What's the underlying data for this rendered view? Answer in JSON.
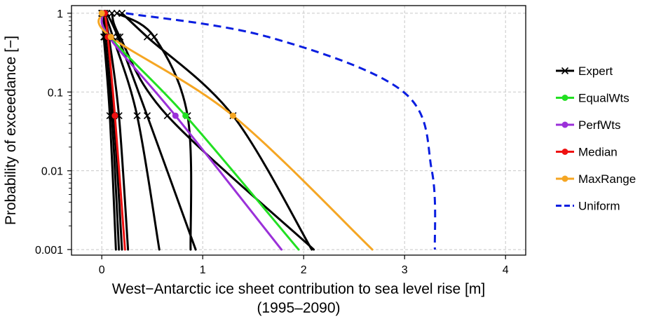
{
  "chart_data": {
    "type": "line",
    "xlabel": "West−Antarctic ice sheet contribution to sea level rise [m]",
    "xlabel_sub": "(1995–2090)",
    "ylabel": "Probability of exceedance [−]",
    "xlim": [
      -0.3,
      4.2
    ],
    "ylim": [
      0.00085,
      1.25
    ],
    "y_scale": "log",
    "grid": true,
    "x_ticks": [
      0,
      1,
      2,
      3,
      4
    ],
    "x_tick_labels": [
      "0",
      "1",
      "2",
      "3",
      "4"
    ],
    "y_ticks": [
      1,
      0.1,
      0.01,
      0.001
    ],
    "y_tick_labels": [
      "1",
      "0.1",
      "0.01",
      "0.001"
    ],
    "legend_position": "right",
    "legend": [
      {
        "label": "Expert",
        "color": "#000000",
        "marker": "x",
        "dashed": false
      },
      {
        "label": "EqualWts",
        "color": "#22e022",
        "marker": "dot",
        "dashed": false
      },
      {
        "label": "PerfWts",
        "color": "#9b30d9",
        "marker": "dot",
        "dashed": false
      },
      {
        "label": "Median",
        "color": "#ee1111",
        "marker": "dot",
        "dashed": false
      },
      {
        "label": "MaxRange",
        "color": "#f5a623",
        "marker": "dot",
        "dashed": false
      },
      {
        "label": "Uniform",
        "color": "#0a1ee0",
        "marker": "none",
        "dashed": true
      }
    ],
    "series": [
      {
        "legend": "Expert",
        "color": "#000000",
        "dashed": false,
        "markers": "x",
        "points": [
          [
            0.0,
            1
          ],
          [
            0.02,
            0.5
          ],
          [
            0.08,
            0.05
          ],
          [
            0.14,
            0.001
          ]
        ]
      },
      {
        "legend": "Expert",
        "color": "#000000",
        "dashed": false,
        "markers": "x",
        "points": [
          [
            0.0,
            1
          ],
          [
            0.03,
            0.5
          ],
          [
            0.1,
            0.05
          ],
          [
            0.17,
            0.001
          ]
        ]
      },
      {
        "legend": "Expert",
        "color": "#000000",
        "dashed": false,
        "markers": "x",
        "points": [
          [
            0.01,
            1
          ],
          [
            0.05,
            0.5
          ],
          [
            0.12,
            0.05
          ],
          [
            0.2,
            0.001
          ]
        ]
      },
      {
        "legend": "Expert",
        "color": "#000000",
        "dashed": false,
        "markers": "x",
        "points": [
          [
            0.02,
            1
          ],
          [
            0.07,
            0.5
          ],
          [
            0.17,
            0.05
          ],
          [
            0.26,
            0.001
          ]
        ]
      },
      {
        "legend": "Expert",
        "color": "#000000",
        "dashed": false,
        "markers": "x",
        "points": [
          [
            0.03,
            1
          ],
          [
            0.11,
            0.5
          ],
          [
            0.35,
            0.05
          ],
          [
            0.57,
            0.001
          ]
        ]
      },
      {
        "legend": "Expert",
        "color": "#000000",
        "dashed": false,
        "markers": "x",
        "points": [
          [
            0.05,
            1
          ],
          [
            0.16,
            0.5
          ],
          [
            0.45,
            0.05
          ],
          [
            0.93,
            0.001
          ]
        ]
      },
      {
        "legend": "Expert",
        "color": "#000000",
        "dashed": false,
        "markers": "x",
        "points": [
          [
            0.1,
            1
          ],
          [
            0.18,
            0.5
          ],
          [
            0.65,
            0.05
          ],
          [
            2.1,
            0.001
          ]
        ]
      },
      {
        "legend": "Expert",
        "color": "#000000",
        "dashed": false,
        "markers": "x",
        "points": [
          [
            0.2,
            1
          ],
          [
            0.45,
            0.5
          ],
          [
            1.3,
            0.05
          ],
          [
            2.08,
            0.001
          ]
        ]
      },
      {
        "legend": "Expert",
        "color": "#000000",
        "dashed": false,
        "markers": "x",
        "points": [
          [
            0.15,
            1
          ],
          [
            0.52,
            0.5
          ],
          [
            0.85,
            0.05
          ],
          [
            0.88,
            0.001
          ]
        ]
      },
      {
        "legend": "EqualWts",
        "color": "#22e022",
        "dashed": false,
        "markers": "dot",
        "points": [
          [
            0.01,
            1
          ],
          [
            0.08,
            0.5
          ],
          [
            0.83,
            0.05
          ],
          [
            1.95,
            0.001
          ]
        ]
      },
      {
        "legend": "PerfWts",
        "color": "#9b30d9",
        "dashed": false,
        "markers": "dot",
        "points": [
          [
            0.01,
            1
          ],
          [
            0.07,
            0.5
          ],
          [
            0.73,
            0.05
          ],
          [
            1.78,
            0.001
          ]
        ]
      },
      {
        "legend": "Median",
        "color": "#ee1111",
        "dashed": false,
        "markers": "dot",
        "points": [
          [
            0.03,
            1
          ],
          [
            0.06,
            0.5
          ],
          [
            0.13,
            0.05
          ],
          [
            0.23,
            0.001
          ]
        ]
      },
      {
        "legend": "MaxRange",
        "color": "#f5a623",
        "dashed": false,
        "markers": "dot",
        "points": [
          [
            0.0,
            1
          ],
          [
            0.09,
            0.5
          ],
          [
            1.3,
            0.05
          ],
          [
            2.68,
            0.001
          ]
        ]
      },
      {
        "legend": "Uniform",
        "color": "#0a1ee0",
        "dashed": true,
        "markers": "none",
        "points": [
          [
            0.24,
            1
          ],
          [
            1.65,
            0.5
          ],
          [
            2.99,
            0.1
          ],
          [
            3.27,
            0.01
          ],
          [
            3.3,
            0.001
          ]
        ]
      }
    ]
  }
}
